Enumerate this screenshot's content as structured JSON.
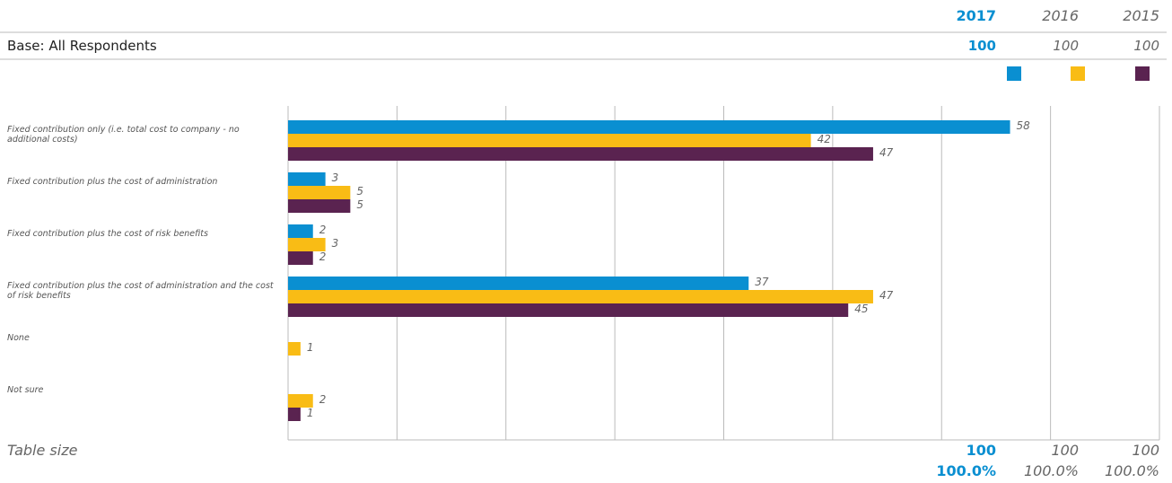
{
  "header": {
    "base_label": "Base: All Respondents",
    "base_values": [
      "100",
      "100",
      "100"
    ]
  },
  "chart_data": {
    "type": "barh",
    "categories": [
      "Fixed contribution only (i.e. total cost to company - no additional costs)",
      "Fixed contribution plus the cost of administration",
      "Fixed contribution plus the cost of risk benefits",
      "Fixed contribution plus the cost of administration and the cost of risk benefits",
      "None",
      "Not sure"
    ],
    "series": [
      {
        "name": "2017",
        "color": "#0a8fd1",
        "values": [
          58,
          3,
          2,
          37,
          null,
          null
        ]
      },
      {
        "name": "2016",
        "color": "#f9bc15",
        "values": [
          42,
          5,
          3,
          47,
          1,
          2
        ]
      },
      {
        "name": "2015",
        "color": "#5a2350",
        "values": [
          47,
          5,
          2,
          45,
          null,
          1
        ]
      }
    ],
    "xlim": [
      0,
      70
    ],
    "xticks": [
      0,
      8.75,
      17.5,
      26.25,
      35,
      43.75,
      52.5,
      61.25,
      70
    ],
    "grid": true
  },
  "footer": {
    "label": "Table size",
    "sizes": [
      "100",
      "100",
      "100"
    ],
    "percents": [
      "100.0%",
      "100.0%",
      "100.0%"
    ]
  }
}
